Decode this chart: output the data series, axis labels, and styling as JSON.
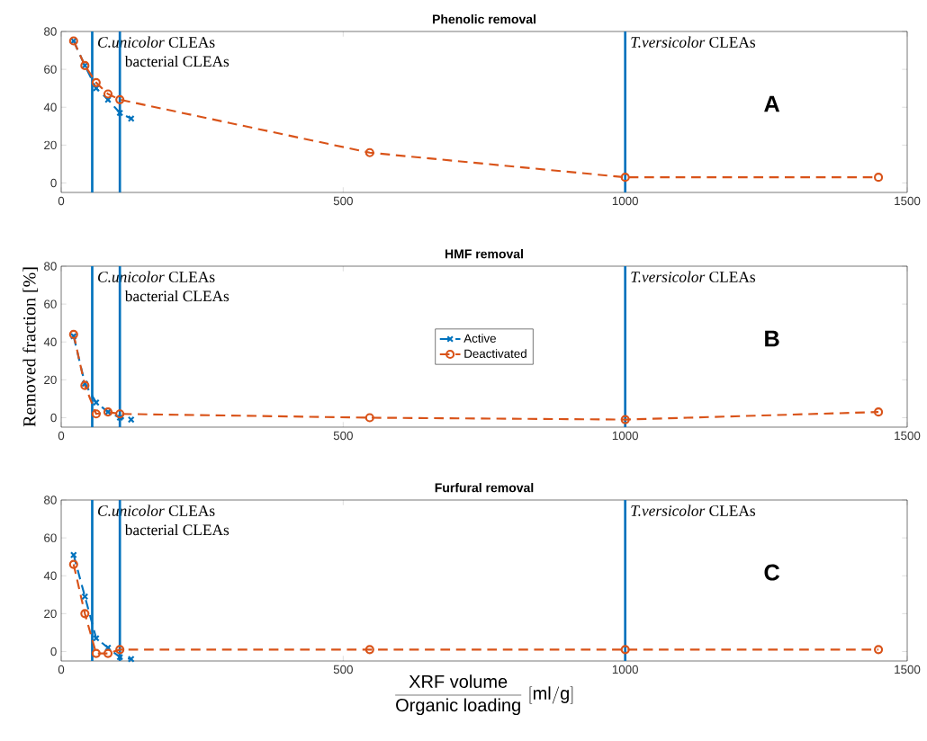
{
  "chart_data": [
    {
      "type": "line",
      "title": "Phenolic removal",
      "xlim": [
        0,
        1500
      ],
      "xticks": [
        0,
        500,
        1000,
        1500
      ],
      "ylim": [
        -5,
        80
      ],
      "yticks": [
        0,
        20,
        40,
        60,
        80
      ],
      "line_style": "dashed",
      "legend": false,
      "series": [
        {
          "color": "#0072bd",
          "marker": "cross",
          "x": [
            22,
            42,
            62,
            83,
            104,
            124
          ],
          "values": [
            75,
            62,
            50,
            44,
            37,
            34
          ]
        },
        {
          "color": "#d95319",
          "marker": "circle",
          "x": [
            22,
            42,
            62,
            83,
            104,
            547,
            1000,
            1449
          ],
          "values": [
            75,
            62,
            53,
            47,
            44,
            16,
            3,
            3
          ]
        }
      ],
      "ref_lines": [
        {
          "axis": "x",
          "value": 55,
          "label": "*C.unicolor* CLEAs",
          "color": "#0072bd"
        },
        {
          "axis": "x",
          "value": 104,
          "label": "bacterial CLEAs",
          "color": "#0072bd"
        },
        {
          "axis": "x",
          "value": 1000,
          "label": "*T.versicolor* CLEAs",
          "color": "#0072bd"
        }
      ],
      "annotations": [
        "A"
      ]
    },
    {
      "type": "line",
      "title": "HMF removal",
      "ylabel": "Removed fraction [%]",
      "xlim": [
        0,
        1500
      ],
      "xticks": [
        0,
        500,
        1000,
        1500
      ],
      "ylim": [
        -5,
        80
      ],
      "yticks": [
        0,
        20,
        40,
        60,
        80
      ],
      "line_style": "dashed",
      "legend": "center",
      "series": [
        {
          "name": "Active",
          "color": "#0072bd",
          "marker": "cross",
          "x": [
            22,
            42,
            62,
            83,
            104,
            124
          ],
          "values": [
            43,
            18,
            8,
            3,
            0,
            -1
          ]
        },
        {
          "name": "Deactivated",
          "color": "#d95319",
          "marker": "circle",
          "x": [
            22,
            42,
            62,
            83,
            104,
            547,
            1000,
            1449
          ],
          "values": [
            44,
            17,
            2,
            3,
            2,
            0,
            -1,
            3
          ]
        }
      ],
      "ref_lines": [
        {
          "axis": "x",
          "value": 55,
          "label": "*C.unicolor* CLEAs",
          "color": "#0072bd"
        },
        {
          "axis": "x",
          "value": 104,
          "label": "bacterial CLEAs",
          "color": "#0072bd"
        },
        {
          "axis": "x",
          "value": 1000,
          "label": "*T.versicolor* CLEAs",
          "color": "#0072bd"
        }
      ],
      "annotations": [
        "B"
      ]
    },
    {
      "type": "line",
      "title": "Furfural removal",
      "xlabel": "\\frac{\\mathrm{XRF\\ volume}}{\\mathrm{Organic\\ loading}}\\ [\\mathrm{ml/g}]",
      "xlim": [
        0,
        1500
      ],
      "xticks": [
        0,
        500,
        1000,
        1500
      ],
      "ylim": [
        -5,
        80
      ],
      "yticks": [
        0,
        20,
        40,
        60,
        80
      ],
      "line_style": "dashed",
      "legend": false,
      "series": [
        {
          "color": "#0072bd",
          "marker": "cross",
          "x": [
            22,
            42,
            62,
            83,
            104,
            124
          ],
          "values": [
            51,
            29,
            7,
            2,
            -3,
            -4
          ]
        },
        {
          "color": "#d95319",
          "marker": "circle",
          "x": [
            22,
            42,
            62,
            83,
            104,
            547,
            1000,
            1449
          ],
          "values": [
            46,
            20,
            -1,
            -1,
            1,
            1,
            1,
            1
          ]
        }
      ],
      "ref_lines": [
        {
          "axis": "x",
          "value": 55,
          "label": "*C.unicolor* CLEAs",
          "color": "#0072bd"
        },
        {
          "axis": "x",
          "value": 104,
          "label": "bacterial CLEAs",
          "color": "#0072bd"
        },
        {
          "axis": "x",
          "value": 1000,
          "label": "*T.versicolor* CLEAs",
          "color": "#0072bd"
        }
      ],
      "annotations": [
        "C"
      ]
    }
  ]
}
